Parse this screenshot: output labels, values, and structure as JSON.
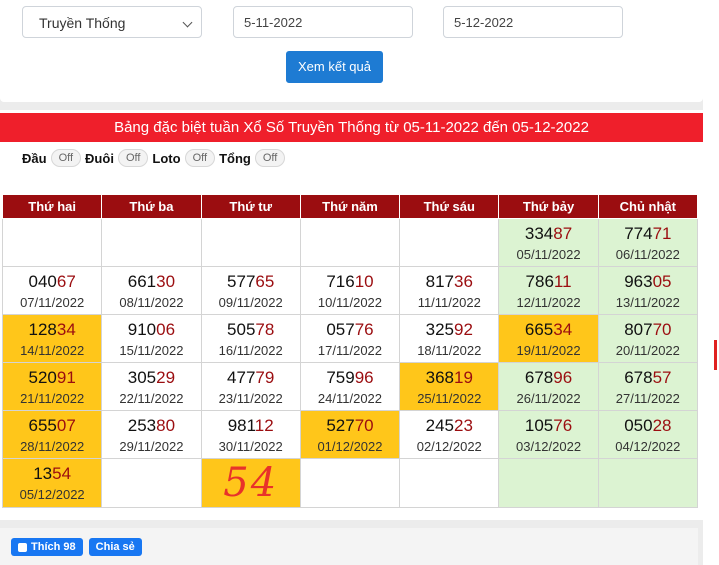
{
  "form": {
    "select_value": "Truyền Thống",
    "from_date": "5-11-2022",
    "to_date": "5-12-2022",
    "submit_label": "Xem kết quả"
  },
  "banner": {
    "title": "Bảng đặc biệt tuần Xổ Số Truyền Thống từ 05-11-2022 đến 05-12-2022"
  },
  "filters": [
    {
      "label": "Đầu",
      "state": "Off"
    },
    {
      "label": "Đuôi",
      "state": "Off"
    },
    {
      "label": "Loto",
      "state": "Off"
    },
    {
      "label": "Tổng",
      "state": "Off"
    }
  ],
  "table": {
    "headers": [
      "Thứ hai",
      "Thứ ba",
      "Thứ tư",
      "Thứ năm",
      "Thứ sáu",
      "Thứ bảy",
      "Chủ nhật"
    ],
    "rows": [
      [
        {
          "empty": true
        },
        {
          "empty": true
        },
        {
          "empty": true
        },
        {
          "empty": true
        },
        {
          "empty": true
        },
        {
          "head": "334",
          "tail": "87",
          "date": "05/11/2022",
          "style": "we"
        },
        {
          "head": "774",
          "tail": "71",
          "date": "06/11/2022",
          "style": "we"
        }
      ],
      [
        {
          "head": "040",
          "tail": "67",
          "date": "07/11/2022"
        },
        {
          "head": "661",
          "tail": "30",
          "date": "08/11/2022"
        },
        {
          "head": "577",
          "tail": "65",
          "date": "09/11/2022"
        },
        {
          "head": "716",
          "tail": "10",
          "date": "10/11/2022"
        },
        {
          "head": "817",
          "tail": "36",
          "date": "11/11/2022"
        },
        {
          "head": "786",
          "tail": "11",
          "date": "12/11/2022",
          "style": "we"
        },
        {
          "head": "963",
          "tail": "05",
          "date": "13/11/2022",
          "style": "we"
        }
      ],
      [
        {
          "head": "128",
          "tail": "34",
          "date": "14/11/2022",
          "style": "hl"
        },
        {
          "head": "910",
          "tail": "06",
          "date": "15/11/2022"
        },
        {
          "head": "505",
          "tail": "78",
          "date": "16/11/2022"
        },
        {
          "head": "057",
          "tail": "76",
          "date": "17/11/2022"
        },
        {
          "head": "325",
          "tail": "92",
          "date": "18/11/2022"
        },
        {
          "head": "665",
          "tail": "34",
          "date": "19/11/2022",
          "style": "hl"
        },
        {
          "head": "807",
          "tail": "70",
          "date": "20/11/2022",
          "style": "we"
        }
      ],
      [
        {
          "head": "520",
          "tail": "91",
          "date": "21/11/2022",
          "style": "hl"
        },
        {
          "head": "305",
          "tail": "29",
          "date": "22/11/2022"
        },
        {
          "head": "477",
          "tail": "79",
          "date": "23/11/2022"
        },
        {
          "head": "759",
          "tail": "96",
          "date": "24/11/2022"
        },
        {
          "head": "368",
          "tail": "19",
          "date": "25/11/2022",
          "style": "hl"
        },
        {
          "head": "678",
          "tail": "96",
          "date": "26/11/2022",
          "style": "we"
        },
        {
          "head": "678",
          "tail": "57",
          "date": "27/11/2022",
          "style": "we"
        }
      ],
      [
        {
          "head": "655",
          "tail": "07",
          "date": "28/11/2022",
          "style": "hl"
        },
        {
          "head": "253",
          "tail": "80",
          "date": "29/11/2022"
        },
        {
          "head": "981",
          "tail": "12",
          "date": "30/11/2022"
        },
        {
          "head": "527",
          "tail": "70",
          "date": "01/12/2022",
          "style": "hl"
        },
        {
          "head": "245",
          "tail": "23",
          "date": "02/12/2022"
        },
        {
          "head": "105",
          "tail": "76",
          "date": "03/12/2022",
          "style": "we"
        },
        {
          "head": "050",
          "tail": "28",
          "date": "04/12/2022",
          "style": "we"
        }
      ],
      [
        {
          "head": "135",
          "tail": "4",
          "head_tail_mid": "54",
          "date": "05/12/2022",
          "style": "hl"
        },
        {
          "empty": true
        },
        {
          "handwritten": "54",
          "style": "hl"
        },
        {
          "empty": true
        },
        {
          "empty": true
        },
        {
          "empty": true,
          "style": "we"
        },
        {
          "empty": true,
          "style": "we"
        }
      ]
    ]
  },
  "social": {
    "like_label": "Thích",
    "like_count": "98",
    "share_label": "Chia sẻ"
  },
  "colors": {
    "banner": "#ef1f2b",
    "header": "#9b0d10",
    "highlight": "#ffc61a",
    "weekend": "#dcf3d2",
    "button": "#1e7bd3"
  }
}
